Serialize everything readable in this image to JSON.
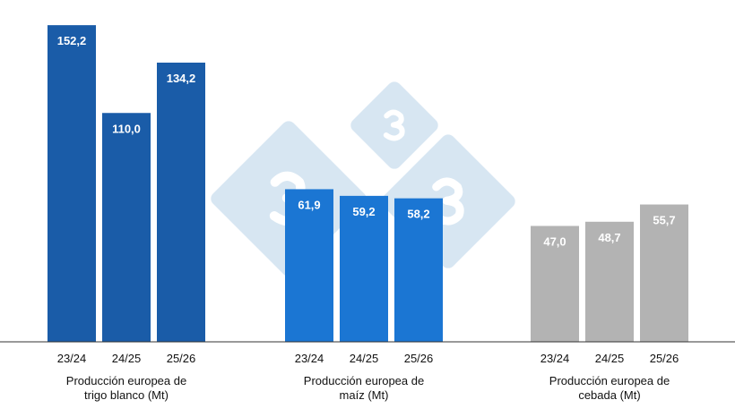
{
  "colors": {
    "background": "#ffffff",
    "watermark": "#d7e6f2",
    "axis": "#333333"
  },
  "watermark": {
    "glyph": "3"
  },
  "chart_data": [
    {
      "type": "bar",
      "title_lines": [
        "Producción europea de",
        "trigo blanco (Mt)"
      ],
      "categories": [
        "23/24",
        "24/25",
        "25/26"
      ],
      "values": [
        152.2,
        110.0,
        134.2
      ],
      "labels": [
        "152,2",
        "110,0",
        "134,2"
      ],
      "color": "#1a5ca8",
      "ylim": [
        0,
        160
      ]
    },
    {
      "type": "bar",
      "title_lines": [
        "Producción europea de",
        "maíz (Mt)"
      ],
      "categories": [
        "23/24",
        "24/25",
        "25/26"
      ],
      "values": [
        61.9,
        59.2,
        58.2
      ],
      "labels": [
        "61,9",
        "59,2",
        "58,2"
      ],
      "color": "#1b76d3",
      "ylim": [
        0,
        135
      ]
    },
    {
      "type": "bar",
      "title_lines": [
        "Producción europea de",
        "cebada (Mt)"
      ],
      "categories": [
        "23/24",
        "24/25",
        "25/26"
      ],
      "values": [
        47.0,
        48.7,
        55.7
      ],
      "labels": [
        "47,0",
        "48,7",
        "55,7"
      ],
      "color": "#b3b3b3",
      "ylim": [
        0,
        135
      ]
    }
  ]
}
